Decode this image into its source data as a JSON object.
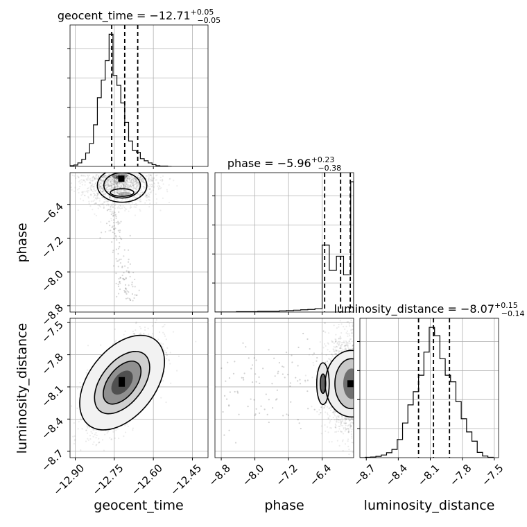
{
  "chart_data": {
    "type": "corner",
    "parameters": [
      "geocent_time",
      "phase",
      "luminosity_distance"
    ],
    "summaries": [
      {
        "name": "geocent_time",
        "title": "geocent_time = −12.71",
        "median": -12.71,
        "plus": "+0.05",
        "minus": "−0.05",
        "q16": -12.76,
        "q84": -12.66
      },
      {
        "name": "phase",
        "title": "phase = −5.96",
        "median": -5.96,
        "plus": "+0.23",
        "minus": "−0.38",
        "q16": -6.34,
        "q84": -5.73
      },
      {
        "name": "luminosity_distance",
        "title": "luminosity_distance = −8.07",
        "median": -8.07,
        "plus": "+0.15",
        "minus": "−0.14",
        "q16": -8.21,
        "q84": -7.92
      }
    ],
    "ranges": {
      "geocent_time": [
        -12.92,
        -12.39
      ],
      "phase": [
        -8.95,
        -5.65
      ],
      "luminosity_distance": [
        -8.76,
        -7.46
      ]
    },
    "ticks": {
      "geocent_time": {
        "values": [
          -12.9,
          -12.75,
          -12.6,
          -12.45
        ],
        "labels": [
          "−12.90",
          "−12.75",
          "−12.60",
          "−12.45"
        ]
      },
      "phase": {
        "values": [
          -8.8,
          -8.0,
          -7.2,
          -6.4
        ],
        "labels": [
          "−8.8",
          "−8.0",
          "−7.2",
          "−6.4"
        ]
      },
      "luminosity_distance": {
        "values": [
          -8.7,
          -8.4,
          -8.1,
          -7.8,
          -7.5
        ],
        "labels": [
          "−8.7",
          "−8.4",
          "−8.1",
          "−7.8",
          "−7.5"
        ]
      }
    },
    "histograms": {
      "geocent_time": {
        "edges": [
          -12.92,
          -12.905,
          -12.89,
          -12.875,
          -12.86,
          -12.845,
          -12.83,
          -12.815,
          -12.8,
          -12.785,
          -12.77,
          -12.755,
          -12.74,
          -12.725,
          -12.71,
          -12.695,
          -12.68,
          -12.665,
          -12.65,
          -12.635,
          -12.62,
          -12.605,
          -12.59,
          -12.575,
          -12.56,
          -12.545,
          -12.53
        ],
        "counts": [
          2,
          4,
          10,
          20,
          38,
          65,
          118,
          195,
          245,
          300,
          375,
          258,
          230,
          180,
          125,
          72,
          45,
          40,
          22,
          16,
          10,
          5,
          2,
          1,
          1,
          0
        ]
      },
      "phase": {
        "edges": [
          -8.95,
          -8.78,
          -8.61,
          -8.44,
          -8.27,
          -8.1,
          -7.93,
          -7.76,
          -7.59,
          -7.42,
          -7.25,
          -7.08,
          -6.91,
          -6.74,
          -6.57,
          -6.4,
          -6.23,
          -6.06,
          -5.89,
          -5.72,
          -5.65
        ],
        "counts": [
          0,
          0,
          0,
          1,
          1,
          1,
          2,
          2,
          2,
          3,
          4,
          5,
          6,
          7,
          9,
          180,
          112,
          150,
          100,
          350
        ]
      },
      "luminosity_distance": {
        "edges": [
          -8.76,
          -8.71,
          -8.66,
          -8.61,
          -8.56,
          -8.51,
          -8.46,
          -8.41,
          -8.36,
          -8.31,
          -8.26,
          -8.21,
          -8.16,
          -8.11,
          -8.06,
          -8.01,
          -7.96,
          -7.91,
          -7.86,
          -7.81,
          -7.76,
          -7.71,
          -7.66,
          -7.61,
          -7.56,
          -7.51
        ],
        "counts": [
          0,
          1,
          2,
          4,
          8,
          15,
          25,
          55,
          105,
          160,
          200,
          250,
          320,
          395,
          370,
          300,
          250,
          230,
          170,
          118,
          78,
          50,
          16,
          5,
          1
        ]
      }
    },
    "pairs": [
      {
        "x": "geocent_time",
        "y": "phase",
        "center": [
          -12.73,
          -5.82
        ],
        "spread": [
          0.05,
          0.3
        ]
      },
      {
        "x": "geocent_time",
        "y": "luminosity_distance",
        "center": [
          -12.72,
          -8.06
        ],
        "spread": [
          0.055,
          0.16
        ],
        "correlation": 0.6
      },
      {
        "x": "phase",
        "y": "luminosity_distance",
        "center": [
          -5.8,
          -8.07
        ],
        "spread": [
          0.25,
          0.16
        ]
      }
    ],
    "grid": true,
    "legend": "none"
  },
  "axis_labels": {
    "bottom": [
      "geocent_time",
      "phase",
      "luminosity_distance"
    ],
    "left": [
      "phase",
      "luminosity_distance"
    ]
  }
}
